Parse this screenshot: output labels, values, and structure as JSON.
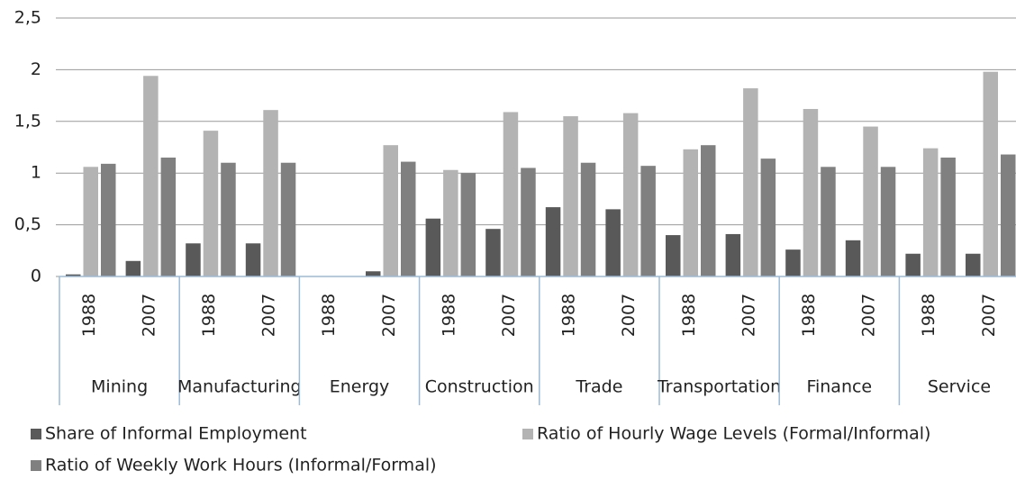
{
  "chart_data": {
    "type": "bar",
    "categories": [
      "1988",
      "2007",
      "1988",
      "2007",
      "1988",
      "2007",
      "1988",
      "2007",
      "1988",
      "2007",
      "1988",
      "2007",
      "1988",
      "2007",
      "1988",
      "2007"
    ],
    "category_groups": [
      "Mining",
      "Manufacturing",
      "Energy",
      "Construction",
      "Trade",
      "Transportation",
      "Finance",
      "Service"
    ],
    "series": [
      {
        "name": "Share of Informal Employment",
        "color": "#595959",
        "values": [
          0.02,
          0.15,
          0.32,
          0.32,
          null,
          0.05,
          0.56,
          0.46,
          0.67,
          0.65,
          0.4,
          0.41,
          0.26,
          0.35,
          0.22,
          0.22
        ]
      },
      {
        "name": "Ratio of Hourly Wage Levels (Formal/Informal)",
        "color": "#b3b3b3",
        "values": [
          1.06,
          1.94,
          1.41,
          1.61,
          null,
          1.27,
          1.03,
          1.59,
          1.55,
          1.58,
          1.23,
          1.82,
          1.62,
          1.45,
          1.24,
          1.98
        ]
      },
      {
        "name": "Ratio of Weekly Work Hours (Informal/Formal)",
        "color": "#808080",
        "values": [
          1.09,
          1.15,
          1.1,
          1.1,
          null,
          1.11,
          1.0,
          1.05,
          1.1,
          1.07,
          1.27,
          1.14,
          1.06,
          1.06,
          1.15,
          1.18
        ]
      }
    ],
    "ylim": [
      0,
      2.5
    ],
    "yticks": [
      0,
      {
        "value": 0.5,
        "label": "0,5"
      },
      1,
      {
        "value": 1.5,
        "label": "1,5"
      },
      2,
      {
        "value": 2.5,
        "label": "2,5"
      }
    ],
    "grid": true
  }
}
